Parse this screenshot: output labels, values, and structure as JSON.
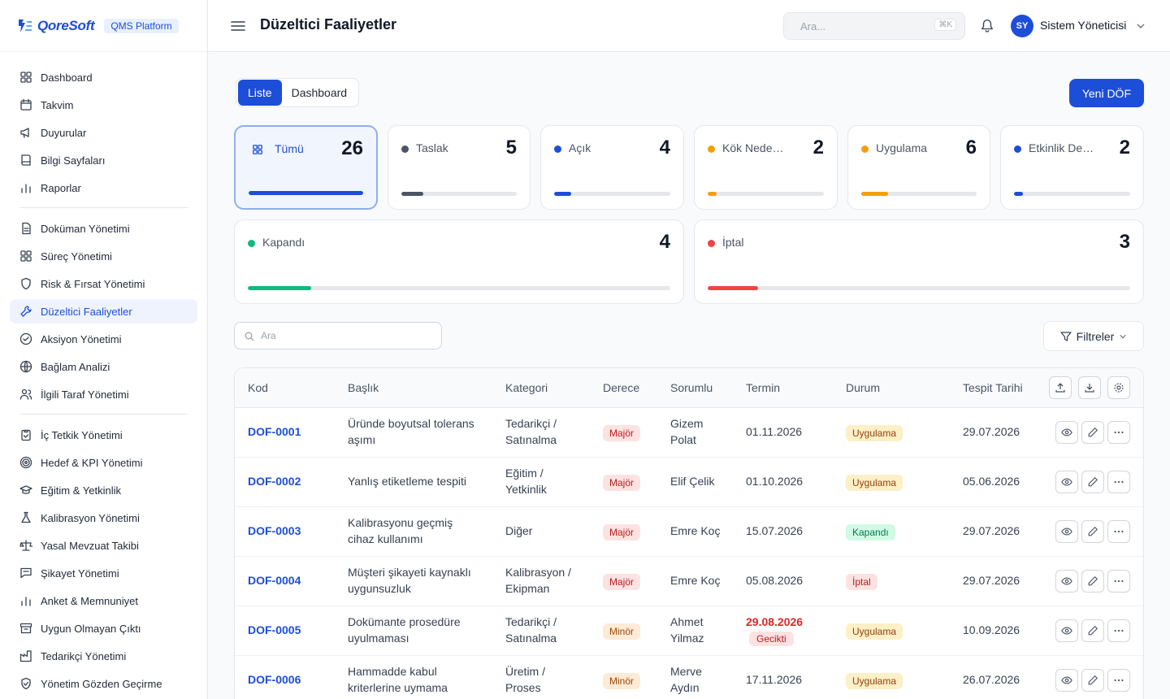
{
  "brand": {
    "logo_text": "QoreSoft",
    "platform": "QMS Platform"
  },
  "sidebar": {
    "groups": [
      [
        {
          "icon": "grid-icon",
          "label": "Dashboard"
        },
        {
          "icon": "calendar-icon",
          "label": "Takvim"
        },
        {
          "icon": "megaphone-icon",
          "label": "Duyurular"
        },
        {
          "icon": "book-icon",
          "label": "Bilgi Sayfaları"
        },
        {
          "icon": "bar-chart-icon",
          "label": "Raporlar"
        }
      ],
      [
        {
          "icon": "document-icon",
          "label": "Doküman Yönetimi"
        },
        {
          "icon": "grid-icon",
          "label": "Süreç Yönetimi"
        },
        {
          "icon": "shield-icon",
          "label": "Risk & Fırsat Yönetimi"
        },
        {
          "icon": "wrench-icon",
          "label": "Düzeltici Faaliyetler",
          "active": true
        },
        {
          "icon": "check-circle-icon",
          "label": "Aksiyon Yönetimi"
        },
        {
          "icon": "globe-icon",
          "label": "Bağlam Analizi"
        },
        {
          "icon": "users-icon",
          "label": "İlgili Taraf Yönetimi"
        }
      ],
      [
        {
          "icon": "clipboard-icon",
          "label": "İç Tetkik Yönetimi"
        },
        {
          "icon": "target-icon",
          "label": "Hedef & KPI Yönetimi"
        },
        {
          "icon": "graduation-cap-icon",
          "label": "Eğitim & Yetkinlik"
        },
        {
          "icon": "flask-icon",
          "label": "Kalibrasyon Yönetimi"
        },
        {
          "icon": "scale-icon",
          "label": "Yasal Mevzuat Takibi"
        },
        {
          "icon": "message-icon",
          "label": "Şikayet Yönetimi"
        },
        {
          "icon": "bar-chart-icon",
          "label": "Anket & Memnuniyet"
        },
        {
          "icon": "archive-icon",
          "label": "Uygun Olmayan Çıktı"
        },
        {
          "icon": "factory-icon",
          "label": "Tedarikçi Yönetimi"
        },
        {
          "icon": "shield-check-icon",
          "label": "Yönetim Gözden Geçirme"
        }
      ]
    ]
  },
  "header": {
    "title": "Düzeltici Faaliyetler",
    "search_placeholder": "Ara...",
    "shortcut": "⌘K",
    "user_initials": "SY",
    "user_name": "Sistem Yöneticisi"
  },
  "tabs": [
    {
      "label": "Liste",
      "active": true
    },
    {
      "label": "Dashboard",
      "active": false
    }
  ],
  "new_button": "Yeni DÖF",
  "status_cards": [
    {
      "label": "Tümü",
      "count": "26",
      "color": "#1d4ed8",
      "fraction": 1.0,
      "active": true
    },
    {
      "label": "Taslak",
      "count": "5",
      "color": "#4b5563",
      "fraction": 0.19
    },
    {
      "label": "Açık",
      "count": "4",
      "color": "#1d4ed8",
      "fraction": 0.15
    },
    {
      "label": "Kök Neden Analizi",
      "count": "2",
      "color": "#f59e0b",
      "fraction": 0.08
    },
    {
      "label": "Uygulama",
      "count": "6",
      "color": "#f59e0b",
      "fraction": 0.23
    },
    {
      "label": "Etkinlik Değerlendirme",
      "count": "2",
      "color": "#1d4ed8",
      "fraction": 0.08
    },
    {
      "label": "Kapandı",
      "count": "4",
      "color": "#10b981",
      "fraction": 0.15
    },
    {
      "label": "İptal",
      "count": "3",
      "color": "#ef4444",
      "fraction": 0.12
    }
  ],
  "list_search_placeholder": "Ara",
  "filter_label": "Filtreler",
  "table": {
    "columns": [
      "Kod",
      "Başlık",
      "Kategori",
      "Derece",
      "Sorumlu",
      "Termin",
      "Durum",
      "Tespit Tarihi"
    ],
    "rows": [
      {
        "code": "DOF-0001",
        "title": [
          "Üründe boyutsal tolerans",
          "aşımı"
        ],
        "category": [
          "Tedarikçi /",
          "Satınalma"
        ],
        "severity": "Majör",
        "owner": [
          "Gizem",
          "Polat"
        ],
        "due": "01.11.2026",
        "late": false,
        "status": "Uygulama",
        "found": "29.07.2026"
      },
      {
        "code": "DOF-0002",
        "title": [
          "Yanlış etiketleme tespiti"
        ],
        "category": [
          "Eğitim /",
          "Yetkinlik"
        ],
        "severity": "Majör",
        "owner": [
          "Elif Çelik"
        ],
        "due": "01.10.2026",
        "late": false,
        "status": "Uygulama",
        "found": "05.06.2026"
      },
      {
        "code": "DOF-0003",
        "title": [
          "Kalibrasyonu geçmiş",
          "cihaz kullanımı"
        ],
        "category": [
          "Diğer"
        ],
        "severity": "Majör",
        "owner": [
          "Emre Koç"
        ],
        "due": "15.07.2026",
        "late": false,
        "status": "Kapandı",
        "found": "29.07.2026"
      },
      {
        "code": "DOF-0004",
        "title": [
          "Müşteri şikayeti kaynaklı",
          "uygunsuzluk"
        ],
        "category": [
          "Kalibrasyon /",
          "Ekipman"
        ],
        "severity": "Majör",
        "owner": [
          "Emre Koç"
        ],
        "due": "05.08.2026",
        "late": false,
        "status": "İptal",
        "found": "29.07.2026"
      },
      {
        "code": "DOF-0005",
        "title": [
          "Dokümante prosedüre",
          "uyulmaması"
        ],
        "category": [
          "Tedarikçi /",
          "Satınalma"
        ],
        "severity": "Minör",
        "owner": [
          "Ahmet",
          "Yilmaz"
        ],
        "due": "29.08.2026",
        "late": true,
        "late_label": "Gecikti",
        "status": "Uygulama",
        "found": "10.09.2026"
      },
      {
        "code": "DOF-0006",
        "title": [
          "Hammadde kabul",
          "kriterlerine uymama"
        ],
        "category": [
          "Üretim /",
          "Proses"
        ],
        "severity": "Minör",
        "owner": [
          "Merve",
          "Aydın"
        ],
        "due": "17.11.2026",
        "late": false,
        "status": "Uygulama",
        "found": "26.07.2026"
      }
    ]
  }
}
